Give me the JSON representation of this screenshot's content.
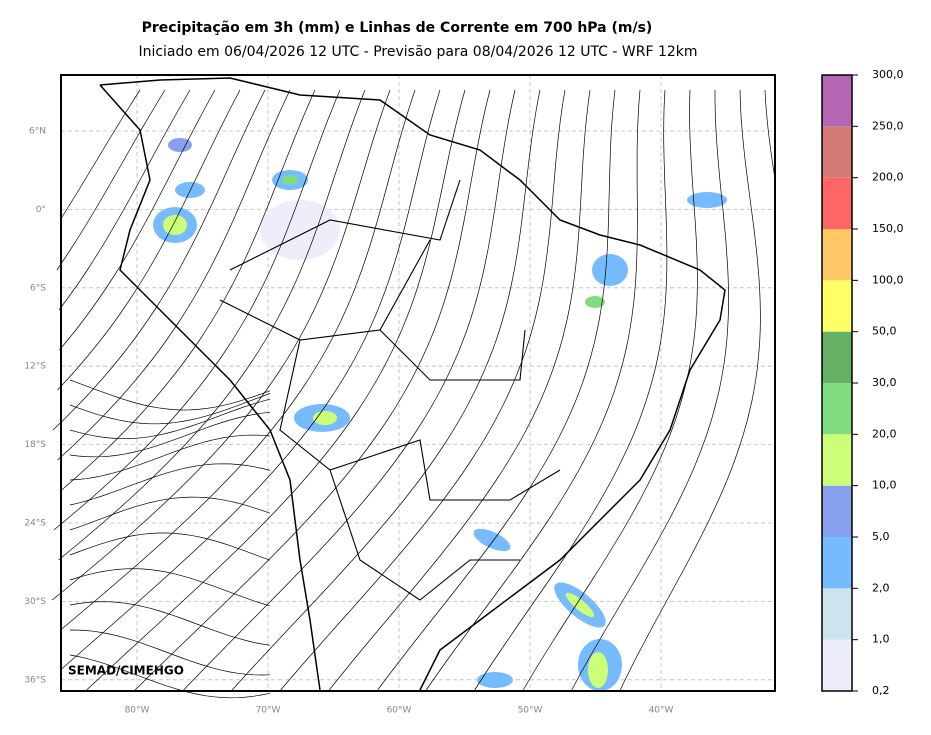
{
  "header": {
    "title": "Precipitação em 3h (mm) e Linhas de Corrente em 700 hPa (m/s)",
    "subtitle": "Iniciado em 06/04/2026 12 UTC - Previsão para 08/04/2026 12 UTC - WRF 12km"
  },
  "map": {
    "lat_ticks": [
      "6°N",
      "0°",
      "6°S",
      "12°S",
      "18°S",
      "24°S",
      "30°S",
      "36°S"
    ],
    "lon_ticks": [
      "80°W",
      "70°W",
      "60°W",
      "50°W",
      "40°W"
    ],
    "credit": "SEMAD/CIMEHGO"
  },
  "colorbar": {
    "labels": [
      "0,2",
      "1,0",
      "2,0",
      "5,0",
      "10,0",
      "20,0",
      "30,0",
      "50,0",
      "100,0",
      "150,0",
      "200,0",
      "250,0",
      "300,0"
    ],
    "colors": [
      "#eeeefa",
      "#cce4ee",
      "#77bbff",
      "#88a0ee",
      "#ccff77",
      "#80dd80",
      "#66b066",
      "#ffff66",
      "#ffc866",
      "#ff6666",
      "#d47a78",
      "#b366b3"
    ]
  }
}
